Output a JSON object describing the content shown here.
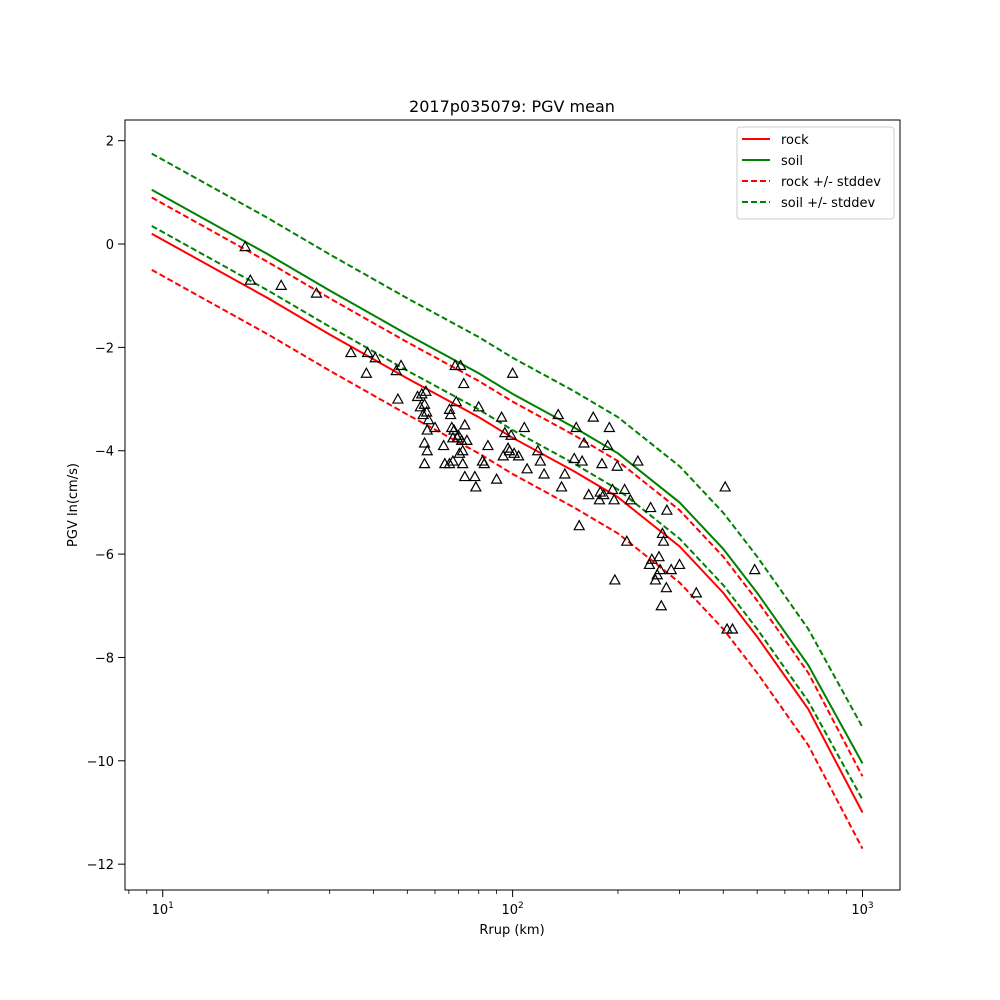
{
  "chart_data": {
    "type": "line",
    "title": "2017p035079: PGV mean",
    "xlabel": "Rrup (km)",
    "ylabel": "PGV ln(cm/s)",
    "xscale": "log",
    "xlim": [
      7.8,
      1280
    ],
    "ylim": [
      -12.5,
      2.4
    ],
    "x_ticks": [
      10,
      100,
      1000
    ],
    "x_tick_labels": [
      {
        "base": "10",
        "exp": "1"
      },
      {
        "base": "10",
        "exp": "2"
      },
      {
        "base": "10",
        "exp": "3"
      }
    ],
    "y_ticks": [
      2,
      0,
      -2,
      -4,
      -6,
      -8,
      -10,
      -12
    ],
    "y_tick_labels": [
      "2",
      "0",
      "−2",
      "−4",
      "−6",
      "−8",
      "−10",
      "−12"
    ],
    "grid": false,
    "legend_position": "top-right",
    "series": [
      {
        "name": "rock",
        "color": "#ff0000",
        "style": "solid",
        "x": [
          9.3,
          20,
          30,
          50,
          80,
          100,
          150,
          200,
          300,
          400,
          500,
          700,
          1000
        ],
        "y": [
          0.2,
          -1.05,
          -1.75,
          -2.6,
          -3.35,
          -3.75,
          -4.4,
          -4.9,
          -5.85,
          -6.75,
          -7.6,
          -9.0,
          -11.0
        ]
      },
      {
        "name": "soil",
        "color": "#008000",
        "style": "solid",
        "x": [
          9.3,
          20,
          30,
          50,
          80,
          100,
          150,
          200,
          300,
          400,
          500,
          700,
          1000
        ],
        "y": [
          1.05,
          -0.2,
          -0.9,
          -1.75,
          -2.5,
          -2.9,
          -3.55,
          -4.05,
          -5.0,
          -5.9,
          -6.75,
          -8.15,
          -10.05
        ]
      },
      {
        "name": "rock +/- stddev",
        "color": "#ff0000",
        "style": "dashed",
        "x": [
          9.3,
          20,
          30,
          50,
          80,
          100,
          150,
          200,
          300,
          400,
          500,
          700,
          1000
        ],
        "y": [
          0.9,
          -0.35,
          -1.05,
          -1.9,
          -2.65,
          -3.05,
          -3.7,
          -4.2,
          -5.15,
          -6.05,
          -6.9,
          -8.3,
          -10.3
        ]
      },
      {
        "name": "",
        "color": "#ff0000",
        "style": "dashed",
        "x": [
          9.3,
          20,
          30,
          50,
          80,
          100,
          150,
          200,
          300,
          400,
          500,
          700,
          1000
        ],
        "y": [
          -0.5,
          -1.75,
          -2.45,
          -3.3,
          -4.05,
          -4.45,
          -5.1,
          -5.6,
          -6.55,
          -7.45,
          -8.3,
          -9.7,
          -11.7
        ]
      },
      {
        "name": "soil +/- stddev",
        "color": "#008000",
        "style": "dashed",
        "x": [
          9.3,
          20,
          30,
          50,
          80,
          100,
          150,
          200,
          300,
          400,
          500,
          700,
          1000
        ],
        "y": [
          1.75,
          0.5,
          -0.2,
          -1.05,
          -1.8,
          -2.2,
          -2.85,
          -3.35,
          -4.3,
          -5.2,
          -6.05,
          -7.45,
          -9.35
        ]
      },
      {
        "name": "",
        "color": "#008000",
        "style": "dashed",
        "x": [
          9.3,
          20,
          30,
          50,
          80,
          100,
          150,
          200,
          300,
          400,
          500,
          700,
          1000
        ],
        "y": [
          0.35,
          -0.9,
          -1.6,
          -2.45,
          -3.2,
          -3.6,
          -4.25,
          -4.75,
          -5.7,
          -6.6,
          -7.45,
          -8.85,
          -10.75
        ]
      }
    ],
    "observations": {
      "marker": "triangle",
      "color": "#000000",
      "points": [
        [
          17.2,
          -0.05
        ],
        [
          17.8,
          -0.7
        ],
        [
          21.8,
          -0.8
        ],
        [
          27.5,
          -0.95
        ],
        [
          34.5,
          -2.1
        ],
        [
          38.5,
          -2.1
        ],
        [
          38.2,
          -2.5
        ],
        [
          40.5,
          -2.2
        ],
        [
          46.5,
          -2.45
        ],
        [
          47.0,
          -3.0
        ],
        [
          48.0,
          -2.35
        ],
        [
          53.5,
          -2.95
        ],
        [
          54.5,
          -3.15
        ],
        [
          55.0,
          -2.9
        ],
        [
          55.5,
          -3.3
        ],
        [
          56.0,
          -3.1
        ],
        [
          56.5,
          -2.85
        ],
        [
          56.8,
          -3.25
        ],
        [
          57.0,
          -3.6
        ],
        [
          57.5,
          -3.4
        ],
        [
          56.0,
          -3.85
        ],
        [
          57.0,
          -4.0
        ],
        [
          56.0,
          -4.25
        ],
        [
          60.0,
          -3.55
        ],
        [
          63.5,
          -3.9
        ],
        [
          64.0,
          -4.25
        ],
        [
          66.0,
          -3.2
        ],
        [
          66.5,
          -3.3
        ],
        [
          67.0,
          -3.55
        ],
        [
          67.5,
          -3.75
        ],
        [
          68.0,
          -3.6
        ],
        [
          68.5,
          -2.35
        ],
        [
          69.0,
          -3.05
        ],
        [
          69.5,
          -3.75
        ],
        [
          70.0,
          -3.7
        ],
        [
          70.5,
          -4.05
        ],
        [
          71.0,
          -2.35
        ],
        [
          71.5,
          -3.8
        ],
        [
          72.0,
          -4.0
        ],
        [
          72.5,
          -2.7
        ],
        [
          73.0,
          -3.5
        ],
        [
          74.0,
          -3.8
        ],
        [
          66.0,
          -4.25
        ],
        [
          67.5,
          -4.2
        ],
        [
          72.0,
          -4.25
        ],
        [
          73.0,
          -4.5
        ],
        [
          78.0,
          -4.5
        ],
        [
          78.5,
          -4.7
        ],
        [
          80.0,
          -3.15
        ],
        [
          82.0,
          -4.2
        ],
        [
          83.0,
          -4.25
        ],
        [
          85.0,
          -3.9
        ],
        [
          90.0,
          -4.55
        ],
        [
          93.0,
          -3.35
        ],
        [
          94.0,
          -4.1
        ],
        [
          95.0,
          -3.65
        ],
        [
          97.0,
          -3.95
        ],
        [
          98.0,
          -4.0
        ],
        [
          99.0,
          -3.7
        ],
        [
          100.0,
          -2.5
        ],
        [
          101.0,
          -4.05
        ],
        [
          104.0,
          -4.1
        ],
        [
          108.0,
          -3.55
        ],
        [
          110.0,
          -4.35
        ],
        [
          118.0,
          -4.0
        ],
        [
          120.0,
          -4.2
        ],
        [
          123.0,
          -4.45
        ],
        [
          135.0,
          -3.3
        ],
        [
          138.0,
          -4.7
        ],
        [
          141.0,
          -4.45
        ],
        [
          150.0,
          -4.15
        ],
        [
          152.0,
          -3.55
        ],
        [
          155.0,
          -5.45
        ],
        [
          158.0,
          -4.2
        ],
        [
          160.0,
          -3.85
        ],
        [
          165.0,
          -4.85
        ],
        [
          170.0,
          -3.35
        ],
        [
          177.0,
          -4.95
        ],
        [
          178.0,
          -4.8
        ],
        [
          180.0,
          -4.25
        ],
        [
          182.0,
          -4.85
        ],
        [
          187.0,
          -3.9
        ],
        [
          189.0,
          -3.55
        ],
        [
          193.0,
          -4.75
        ],
        [
          195.0,
          -4.95
        ],
        [
          196.0,
          -6.5
        ],
        [
          199.0,
          -4.3
        ],
        [
          209.0,
          -4.75
        ],
        [
          212.0,
          -5.75
        ],
        [
          217.0,
          -4.95
        ],
        [
          228.0,
          -4.2
        ],
        [
          246.0,
          -6.2
        ],
        [
          248.0,
          -5.1
        ],
        [
          250.0,
          -6.1
        ],
        [
          256.0,
          -6.5
        ],
        [
          259.0,
          -6.4
        ],
        [
          262.0,
          -6.05
        ],
        [
          264.0,
          -6.3
        ],
        [
          266.0,
          -7.0
        ],
        [
          268.0,
          -5.6
        ],
        [
          270.0,
          -5.75
        ],
        [
          275.0,
          -6.65
        ],
        [
          276.0,
          -5.15
        ],
        [
          284.0,
          -6.3
        ],
        [
          300.0,
          -6.2
        ],
        [
          335.0,
          -6.75
        ],
        [
          405.0,
          -4.7
        ],
        [
          410.0,
          -7.45
        ],
        [
          425.0,
          -7.45
        ],
        [
          492.0,
          -6.3
        ]
      ]
    }
  }
}
